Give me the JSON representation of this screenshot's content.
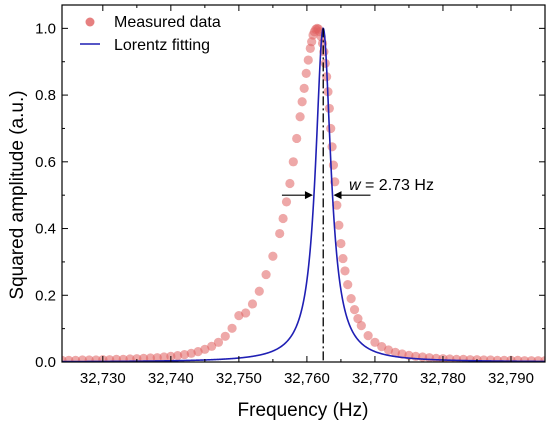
{
  "chart_data": {
    "type": "scatter",
    "xlabel": "Frequency (Hz)",
    "ylabel": "Squared amplitude (a.u.)",
    "xlim": [
      32724,
      32795
    ],
    "ylim": [
      0,
      1.07
    ],
    "x_ticks": [
      32730,
      32740,
      32750,
      32760,
      32770,
      32780,
      32790
    ],
    "x_tick_labels": [
      "32,730",
      "32,740",
      "32,750",
      "32,760",
      "32,770",
      "32,780",
      "32,790"
    ],
    "y_ticks": [
      0.0,
      0.2,
      0.4,
      0.6,
      0.8,
      1.0
    ],
    "y_tick_labels": [
      "0.0",
      "0.2",
      "0.4",
      "0.6",
      "0.8",
      "1.0"
    ],
    "grid": false,
    "legend_position": "top-left",
    "series": [
      {
        "name": "Measured data",
        "kind": "scatter",
        "color": "#e06060",
        "x": [
          32724.0,
          32725.0,
          32726.0,
          32727.0,
          32728.0,
          32729.0,
          32730.0,
          32731.0,
          32732.0,
          32733.0,
          32734.0,
          32735.0,
          32736.0,
          32737.0,
          32738.0,
          32739.0,
          32740.0,
          32741.0,
          32742.0,
          32743.0,
          32744.0,
          32745.0,
          32746.0,
          32747.0,
          32748.0,
          32749.0,
          32750.0,
          32751.0,
          32752.0,
          32753.0,
          32754.0,
          32755.0,
          32756.0,
          32756.5,
          32757.0,
          32757.5,
          32758.0,
          32758.5,
          32759.0,
          32759.3,
          32759.6,
          32759.9,
          32760.2,
          32760.5,
          32760.7,
          32760.9,
          32761.1,
          32761.3,
          32761.5,
          32761.7,
          32761.9,
          32762.1,
          32762.3,
          32762.5,
          32762.7,
          32762.9,
          32763.1,
          32763.3,
          32763.5,
          32763.7,
          32763.9,
          32764.1,
          32764.4,
          32764.7,
          32765.0,
          32765.3,
          32765.6,
          32766.0,
          32766.5,
          32767.0,
          32767.5,
          32768.0,
          32769.0,
          32770.0,
          32771.0,
          32772.0,
          32773.0,
          32774.0,
          32775.0,
          32776.0,
          32777.0,
          32778.0,
          32779.0,
          32780.0,
          32781.0,
          32782.0,
          32783.0,
          32784.0,
          32785.0,
          32786.0,
          32787.0,
          32788.0,
          32789.0,
          32790.0,
          32791.0,
          32792.0,
          32793.0,
          32794.0,
          32795.0
        ],
        "y": [
          0.005,
          0.005,
          0.005,
          0.006,
          0.006,
          0.006,
          0.007,
          0.007,
          0.008,
          0.008,
          0.009,
          0.01,
          0.011,
          0.012,
          0.013,
          0.015,
          0.017,
          0.019,
          0.022,
          0.026,
          0.031,
          0.038,
          0.047,
          0.059,
          0.077,
          0.101,
          0.139,
          0.147,
          0.174,
          0.212,
          0.262,
          0.317,
          0.385,
          0.43,
          0.48,
          0.535,
          0.6,
          0.67,
          0.735,
          0.78,
          0.82,
          0.865,
          0.905,
          0.94,
          0.96,
          0.98,
          0.99,
          0.997,
          1.0,
          0.998,
          0.99,
          0.975,
          0.955,
          0.93,
          0.895,
          0.855,
          0.81,
          0.76,
          0.7,
          0.645,
          0.59,
          0.54,
          0.47,
          0.41,
          0.355,
          0.31,
          0.273,
          0.232,
          0.19,
          0.157,
          0.13,
          0.109,
          0.079,
          0.059,
          0.046,
          0.036,
          0.029,
          0.024,
          0.02,
          0.017,
          0.015,
          0.013,
          0.011,
          0.01,
          0.009,
          0.008,
          0.008,
          0.007,
          0.007,
          0.006,
          0.006,
          0.005,
          0.005,
          0.005,
          0.005,
          0.004,
          0.004,
          0.004,
          0.004
        ]
      },
      {
        "name": "Lorentz fitting",
        "kind": "line",
        "color": "#1f1fb4",
        "center": 32762.4,
        "fwhm": 2.73
      }
    ],
    "annotations": {
      "center_line_x": 32762.4,
      "width_label_italic": "w",
      "width_label_rest": " = 2.73 Hz",
      "width_marker_y": 0.5
    }
  }
}
